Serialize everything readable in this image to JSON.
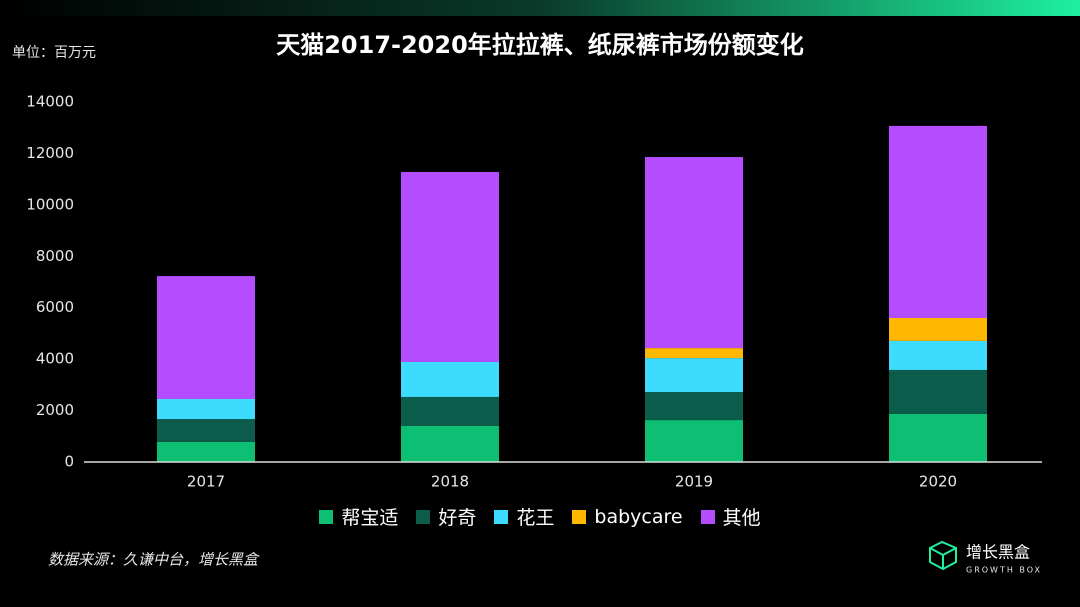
{
  "chart_data": {
    "type": "stacked_bar",
    "title": "天猫2017-2020年拉拉裤、纸尿裤市场份额变化",
    "unit_label": "单位：百万元",
    "source": "数据来源：久谦中台，增长黑盒",
    "brand": "增长黑盒",
    "brand_sub": "GROWTH BOX",
    "categories": [
      "2017",
      "2018",
      "2019",
      "2020"
    ],
    "series": [
      {
        "name": "帮宝适",
        "color": "#0dbf72",
        "values": [
          780,
          1400,
          1630,
          1870
        ]
      },
      {
        "name": "好奇",
        "color": "#0b5c4b",
        "values": [
          890,
          1130,
          1090,
          1710
        ]
      },
      {
        "name": "花王",
        "color": "#3ddcff",
        "values": [
          780,
          1360,
          1320,
          1130
        ]
      },
      {
        "name": "babycare",
        "color": "#ffb800",
        "values": [
          0,
          0,
          390,
          890
        ]
      },
      {
        "name": "其他",
        "color": "#b44dff",
        "values": [
          4780,
          7390,
          7430,
          7470
        ]
      }
    ],
    "ylim": [
      0,
      14000
    ],
    "yticks": [
      0,
      2000,
      4000,
      6000,
      8000,
      10000,
      12000,
      14000
    ],
    "grid": false
  }
}
